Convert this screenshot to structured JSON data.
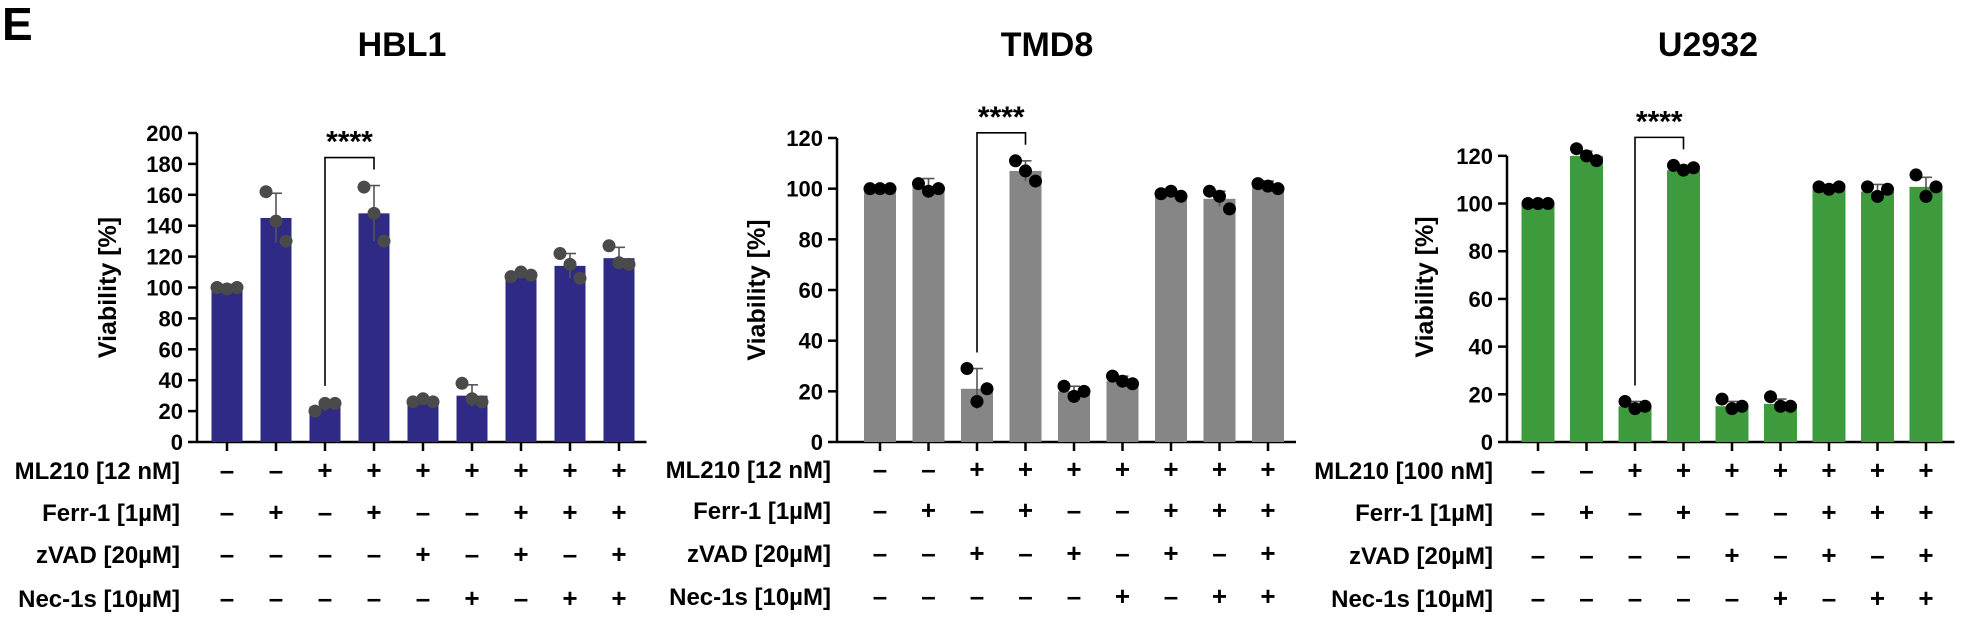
{
  "panel_label": "E",
  "chart_data": [
    {
      "type": "bar",
      "title": "HBL1",
      "xlabel": "",
      "ylabel": "Viability [%]",
      "ylim": [
        0,
        200
      ],
      "yticks": [
        0,
        20,
        40,
        60,
        80,
        100,
        120,
        140,
        160,
        180,
        200
      ],
      "color": "#2e2a86",
      "point_color": "#4a4a4a",
      "values": [
        100,
        145,
        23,
        148,
        26,
        30,
        108,
        114,
        119
      ],
      "errors": [
        2,
        16,
        3,
        18,
        2,
        7,
        2,
        8,
        7
      ],
      "points": [
        [
          100,
          99,
          100
        ],
        [
          162,
          143,
          130
        ],
        [
          20,
          25,
          25
        ],
        [
          165,
          148,
          130
        ],
        [
          26,
          28,
          26
        ],
        [
          38,
          28,
          26
        ],
        [
          107,
          110,
          108
        ],
        [
          122,
          115,
          106
        ],
        [
          127,
          116,
          115
        ]
      ],
      "conditions": [
        {
          "label": "ML210 [12 nM]",
          "signs": [
            "–",
            "–",
            "+",
            "+",
            "+",
            "+",
            "+",
            "+",
            "+"
          ]
        },
        {
          "label": "Ferr-1 [1µM]",
          "signs": [
            "–",
            "+",
            "–",
            "+",
            "–",
            "–",
            "+",
            "+",
            "+"
          ]
        },
        {
          "label": "zVAD [20µM]",
          "signs": [
            "–",
            "–",
            "–",
            "–",
            "+",
            "–",
            "+",
            "–",
            "+"
          ]
        },
        {
          "label": "Nec-1s [10µM]",
          "signs": [
            "–",
            "–",
            "–",
            "–",
            "–",
            "+",
            "–",
            "+",
            "+"
          ]
        }
      ],
      "significance": {
        "from": 2,
        "to": 3,
        "label": "****"
      }
    },
    {
      "type": "bar",
      "title": "TMD8",
      "xlabel": "",
      "ylabel": "Viability [%]",
      "ylim": [
        0,
        120
      ],
      "yticks": [
        0,
        20,
        40,
        60,
        80,
        100,
        120
      ],
      "color": "#868686",
      "point_color": "#000000",
      "values": [
        100,
        101,
        21,
        107,
        20,
        24,
        98,
        96,
        101
      ],
      "errors": [
        1,
        3,
        8,
        4,
        2,
        2,
        1,
        3,
        2
      ],
      "points": [
        [
          100,
          100,
          100
        ],
        [
          102,
          99,
          100
        ],
        [
          29,
          16,
          21
        ],
        [
          111,
          107,
          103
        ],
        [
          22,
          18,
          20
        ],
        [
          26,
          24,
          23
        ],
        [
          98,
          99,
          97
        ],
        [
          99,
          97,
          92
        ],
        [
          102,
          101,
          100
        ]
      ],
      "conditions": [
        {
          "label": "ML210 [12 nM]",
          "signs": [
            "–",
            "–",
            "+",
            "+",
            "+",
            "+",
            "+",
            "+",
            "+"
          ]
        },
        {
          "label": "Ferr-1 [1µM]",
          "signs": [
            "–",
            "+",
            "–",
            "+",
            "–",
            "–",
            "+",
            "+",
            "+"
          ]
        },
        {
          "label": "zVAD [20µM]",
          "signs": [
            "–",
            "–",
            "+",
            "–",
            "+",
            "–",
            "+",
            "–",
            "+"
          ]
        },
        {
          "label": "Nec-1s [10µM]",
          "signs": [
            "–",
            "–",
            "–",
            "–",
            "–",
            "+",
            "–",
            "+",
            "+"
          ]
        }
      ],
      "significance": {
        "from": 2,
        "to": 3,
        "label": "****"
      }
    },
    {
      "type": "bar",
      "title": "U2932",
      "xlabel": "",
      "ylabel": "Viability [%]",
      "ylim": [
        0,
        130
      ],
      "yticks": [
        0,
        20,
        40,
        60,
        80,
        100,
        120
      ],
      "color": "#3d9b3d",
      "point_color": "#000000",
      "values": [
        100,
        120,
        15,
        114,
        15,
        16,
        106,
        105,
        107
      ],
      "errors": [
        1,
        2,
        2,
        2,
        2,
        2,
        1,
        3,
        4
      ],
      "points": [
        [
          100,
          100,
          100
        ],
        [
          123,
          120,
          118
        ],
        [
          17,
          14,
          15
        ],
        [
          116,
          114,
          115
        ],
        [
          18,
          14,
          15
        ],
        [
          19,
          15,
          15
        ],
        [
          107,
          106,
          107
        ],
        [
          107,
          103,
          106
        ],
        [
          112,
          103,
          107
        ]
      ],
      "conditions": [
        {
          "label": "ML210 [100 nM]",
          "signs": [
            "–",
            "–",
            "+",
            "+",
            "+",
            "+",
            "+",
            "+",
            "+"
          ]
        },
        {
          "label": "Ferr-1 [1µM]",
          "signs": [
            "–",
            "+",
            "–",
            "+",
            "–",
            "–",
            "+",
            "+",
            "+"
          ]
        },
        {
          "label": "zVAD [20µM]",
          "signs": [
            "–",
            "–",
            "–",
            "–",
            "+",
            "–",
            "+",
            "–",
            "+"
          ]
        },
        {
          "label": "Nec-1s [10µM]",
          "signs": [
            "–",
            "–",
            "–",
            "–",
            "–",
            "+",
            "–",
            "+",
            "+"
          ]
        }
      ],
      "significance": {
        "from": 2,
        "to": 3,
        "label": "****"
      }
    }
  ]
}
